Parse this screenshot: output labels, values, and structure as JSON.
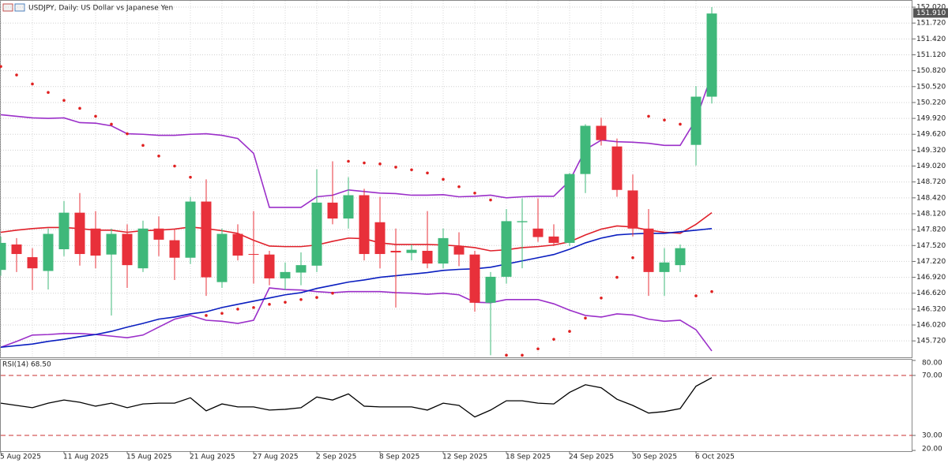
{
  "chart_data": [
    {
      "type": "candlestick",
      "title": "USDJPY, Daily:  US Dollar vs Japanese Yen",
      "categories": [
        "5 Aug 2025",
        null,
        null,
        null,
        "11 Aug 2025",
        null,
        null,
        null,
        "15 Aug 2025",
        null,
        null,
        null,
        "21 Aug 2025",
        null,
        null,
        null,
        "27 Aug 2025",
        null,
        null,
        null,
        "2 Sep 2025",
        null,
        null,
        null,
        "8 Sep 2025",
        null,
        null,
        null,
        "12 Sep 2025",
        null,
        null,
        null,
        "18 Sep 2025",
        null,
        null,
        null,
        "24 Sep 2025",
        null,
        null,
        null,
        "30 Sep 2025",
        null,
        null,
        null,
        "6 Oct 2025",
        null
      ],
      "open": [
        147.06,
        147.54,
        147.3,
        147.04,
        147.45,
        148.14,
        147.84,
        147.35,
        147.74,
        147.09,
        147.84,
        147.62,
        147.29,
        148.35,
        146.83,
        147.74,
        147.36,
        147.35,
        146.9,
        147.01,
        147.14,
        148.33,
        148.03,
        148.47,
        147.96,
        147.42,
        147.38,
        147.42,
        147.18,
        147.5,
        147.35,
        146.44,
        146.93,
        147.96,
        147.84,
        147.69,
        147.57,
        148.87,
        149.78,
        149.39,
        148.56,
        147.84,
        147.02,
        147.15,
        149.42,
        150.33
      ],
      "high": [
        147.69,
        147.66,
        147.47,
        147.84,
        148.36,
        148.51,
        148.17,
        147.84,
        147.92,
        147.99,
        148.07,
        147.84,
        148.44,
        148.77,
        147.84,
        147.92,
        148.17,
        147.42,
        147.2,
        147.39,
        148.96,
        149.11,
        148.81,
        148.59,
        148.44,
        147.84,
        147.54,
        148.17,
        147.84,
        147.77,
        147.42,
        147.02,
        148.21,
        148.41,
        148.41,
        147.92,
        148.89,
        149.81,
        149.93,
        149.54,
        148.86,
        148.21,
        147.47,
        147.54,
        150.53,
        152.02
      ],
      "low": [
        146.95,
        147.02,
        146.68,
        146.69,
        147.32,
        147.14,
        147.09,
        146.2,
        146.72,
        147.02,
        147.32,
        146.87,
        147.17,
        146.57,
        146.72,
        147.24,
        146.8,
        146.77,
        146.68,
        146.77,
        147.02,
        147.92,
        147.84,
        147.24,
        147.09,
        146.35,
        147.24,
        147.09,
        147.09,
        147.13,
        146.27,
        145.45,
        146.8,
        147.09,
        147.59,
        147.51,
        147.51,
        148.51,
        149.41,
        148.44,
        147.69,
        146.57,
        146.57,
        147.02,
        149.03,
        150.2
      ],
      "close": [
        147.57,
        147.36,
        147.09,
        147.74,
        148.14,
        147.36,
        147.33,
        147.74,
        147.15,
        147.84,
        147.63,
        147.29,
        148.35,
        146.92,
        147.74,
        147.33,
        147.35,
        146.9,
        147.02,
        147.15,
        148.33,
        148.03,
        148.47,
        147.36,
        147.36,
        147.39,
        147.44,
        147.18,
        147.66,
        147.35,
        146.44,
        146.93,
        147.98,
        147.98,
        147.68,
        147.57,
        148.87,
        149.78,
        149.51,
        148.57,
        147.84,
        147.02,
        147.2,
        147.47,
        150.33,
        151.9
      ],
      "up_color": "#3fb87a",
      "down_color": "#e8303a",
      "series": [
        {
          "style": "line",
          "color": "#9b2fc9",
          "values": [
            149.99,
            149.96,
            149.93,
            149.92,
            149.93,
            149.84,
            149.83,
            149.78,
            149.63,
            149.62,
            149.6,
            149.6,
            149.62,
            149.63,
            149.6,
            149.54,
            149.26,
            148.24,
            148.24,
            148.24,
            148.44,
            148.47,
            148.57,
            148.54,
            148.51,
            148.5,
            148.47,
            148.47,
            148.48,
            148.44,
            148.45,
            148.47,
            148.42,
            148.44,
            148.45,
            148.45,
            148.74,
            149.33,
            149.51,
            149.48,
            149.47,
            149.45,
            149.41,
            149.41,
            149.9,
            150.75
          ]
        },
        {
          "style": "line",
          "color": "#9b2fc9",
          "values": [
            145.6,
            145.71,
            145.83,
            145.84,
            145.86,
            145.86,
            145.84,
            145.81,
            145.78,
            145.83,
            145.98,
            146.13,
            146.2,
            146.11,
            146.09,
            146.05,
            146.11,
            146.72,
            146.69,
            146.68,
            146.65,
            146.63,
            146.65,
            146.65,
            146.65,
            146.63,
            146.62,
            146.6,
            146.62,
            146.59,
            146.45,
            146.44,
            146.5,
            146.5,
            146.5,
            146.42,
            146.3,
            146.2,
            146.17,
            146.23,
            146.21,
            146.13,
            146.09,
            146.11,
            145.93,
            145.53
          ]
        },
        {
          "style": "line",
          "color": "#e0202a",
          "values": [
            147.77,
            147.81,
            147.84,
            147.86,
            147.86,
            147.84,
            147.81,
            147.81,
            147.77,
            147.8,
            147.81,
            147.83,
            147.87,
            147.84,
            147.8,
            147.75,
            147.62,
            147.51,
            147.5,
            147.5,
            147.53,
            147.6,
            147.66,
            147.65,
            147.57,
            147.54,
            147.54,
            147.54,
            147.53,
            147.51,
            147.48,
            147.42,
            147.44,
            147.48,
            147.5,
            147.53,
            147.59,
            147.72,
            147.83,
            147.89,
            147.87,
            147.81,
            147.77,
            147.75,
            147.92,
            148.14
          ]
        },
        {
          "style": "line",
          "color": "#0a1ec0",
          "values": [
            145.6,
            145.63,
            145.66,
            145.71,
            145.75,
            145.8,
            145.84,
            145.9,
            145.98,
            146.05,
            146.13,
            146.17,
            146.23,
            146.27,
            146.35,
            146.41,
            146.47,
            146.53,
            146.59,
            146.63,
            146.71,
            146.77,
            146.83,
            146.87,
            146.92,
            146.95,
            146.98,
            147.01,
            147.05,
            147.07,
            147.08,
            147.11,
            147.17,
            147.23,
            147.29,
            147.35,
            147.45,
            147.57,
            147.66,
            147.72,
            147.74,
            147.75,
            147.75,
            147.78,
            147.81,
            147.84
          ]
        },
        {
          "style": "dots",
          "color": "#e02020",
          "values": [
            150.9,
            150.74,
            150.57,
            150.41,
            150.26,
            150.11,
            149.96,
            149.81,
            149.63,
            149.41,
            149.21,
            149.02,
            148.81,
            146.2,
            146.24,
            146.32,
            146.35,
            146.41,
            146.45,
            146.5,
            146.54,
            146.62,
            149.11,
            149.08,
            149.06,
            149.0,
            148.95,
            148.89,
            148.77,
            148.63,
            148.51,
            148.38,
            145.45,
            145.45,
            145.57,
            145.75,
            145.9,
            146.15,
            146.53,
            146.92,
            147.29,
            149.96,
            149.89,
            149.81,
            146.57,
            146.65
          ]
        }
      ],
      "last_price": {
        "value": 151.91,
        "label": "151.910"
      },
      "ylim": [
        145.41,
        152.14
      ],
      "yticks": [
        {
          "value": 145.72,
          "label": "145.720"
        },
        {
          "value": 146.02,
          "label": "146.020"
        },
        {
          "value": 146.32,
          "label": "146.320"
        },
        {
          "value": 146.62,
          "label": "146.620"
        },
        {
          "value": 146.92,
          "label": "146.920"
        },
        {
          "value": 147.22,
          "label": "147.220"
        },
        {
          "value": 147.52,
          "label": "147.520"
        },
        {
          "value": 147.82,
          "label": "147.820"
        },
        {
          "value": 148.12,
          "label": "148.120"
        },
        {
          "value": 148.42,
          "label": "148.420"
        },
        {
          "value": 148.72,
          "label": "148.720"
        },
        {
          "value": 149.02,
          "label": "149.020"
        },
        {
          "value": 149.32,
          "label": "149.320"
        },
        {
          "value": 149.62,
          "label": "149.620"
        },
        {
          "value": 149.92,
          "label": "149.920"
        },
        {
          "value": 150.22,
          "label": "150.220"
        },
        {
          "value": 150.52,
          "label": "150.520"
        },
        {
          "value": 150.82,
          "label": "150.820"
        },
        {
          "value": 151.12,
          "label": "151.120"
        },
        {
          "value": 151.42,
          "label": "151.420"
        },
        {
          "value": 151.72,
          "label": "151.720"
        },
        {
          "value": 152.02,
          "label": "152.020"
        }
      ],
      "grid": true
    },
    {
      "type": "line",
      "title": "RSI(14) 68.50",
      "color": "#000000",
      "level_color": "#c83232",
      "values": [
        51.5,
        50.0,
        48.5,
        51.5,
        53.6,
        52.1,
        49.5,
        51.5,
        48.5,
        51.0,
        51.5,
        51.5,
        55.1,
        46.4,
        51.0,
        49.0,
        49.0,
        46.9,
        47.4,
        48.5,
        55.6,
        53.6,
        57.7,
        49.5,
        49.0,
        49.0,
        49.0,
        46.9,
        51.5,
        50.0,
        42.3,
        46.9,
        53.1,
        53.1,
        51.5,
        51.0,
        58.7,
        63.8,
        61.8,
        54.1,
        50.0,
        44.9,
        45.9,
        47.9,
        62.8,
        68.5
      ],
      "ylim": [
        19.5,
        80.5
      ],
      "yticks": [
        {
          "value": 20,
          "label": "20.00"
        },
        {
          "value": 30,
          "label": "30.00"
        },
        {
          "value": 70,
          "label": "70.00"
        },
        {
          "value": 80,
          "label": "80.00"
        }
      ]
    }
  ]
}
